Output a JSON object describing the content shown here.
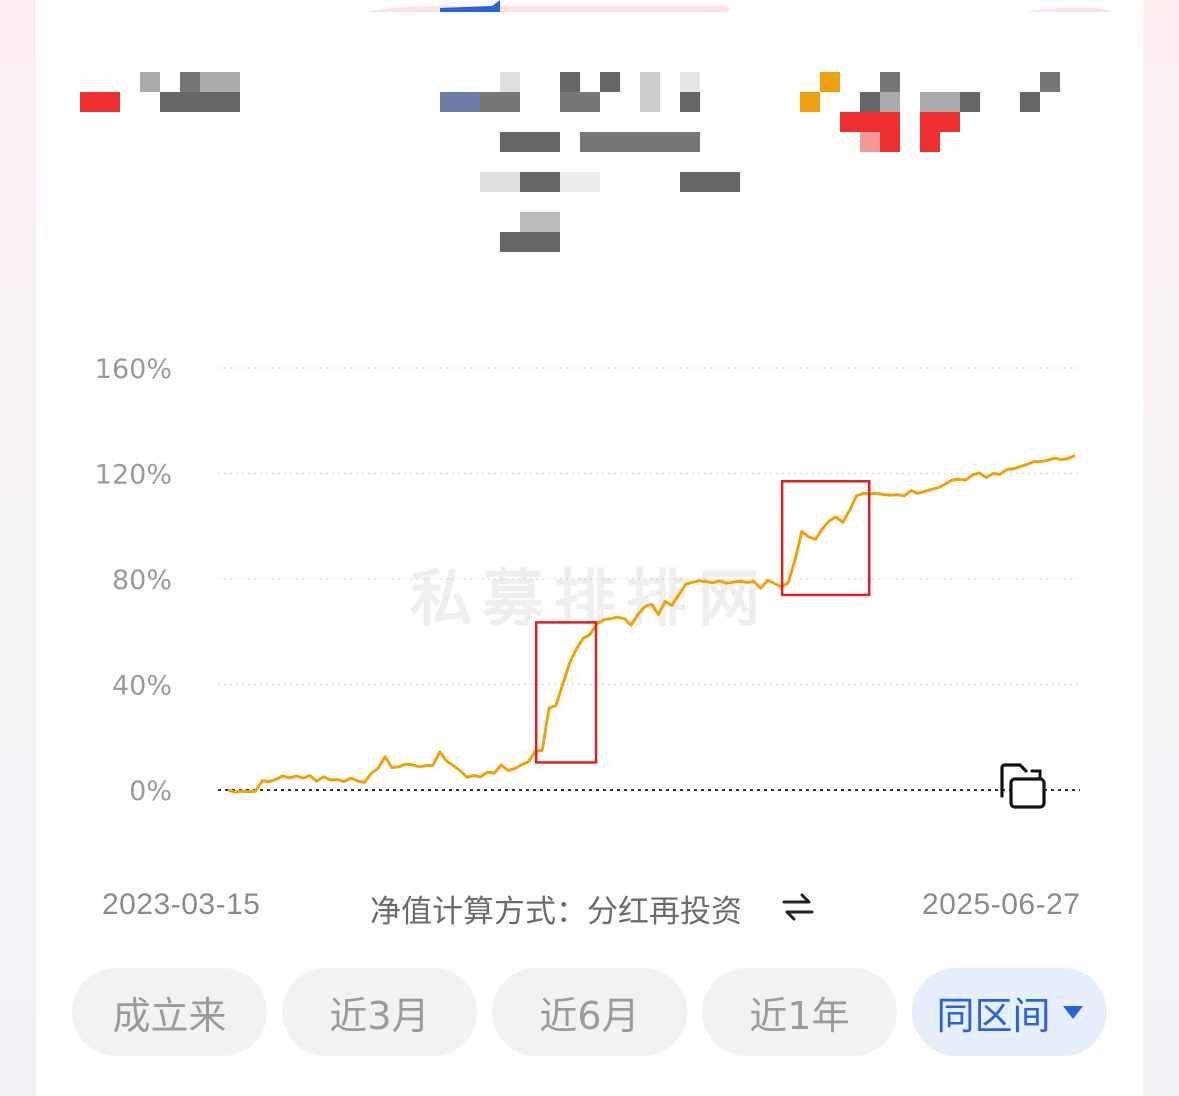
{
  "chart_data": {
    "type": "line",
    "xlabel": "",
    "ylabel": "",
    "x_start_label": "2023-03-15",
    "x_end_label": "2025-06-27",
    "y_ticks": [
      "160%",
      "120%",
      "80%",
      "40%",
      "0%"
    ],
    "ylim": [
      0,
      160
    ],
    "grid": true,
    "line_color": "#f0a20a",
    "highlight_color": "#e02020",
    "series": [
      {
        "values": [
          0,
          -0.8,
          -0.4,
          -0.6,
          -0.5,
          3.5,
          3.2,
          4,
          5.3,
          4.6,
          5.3,
          4.5,
          5.5,
          3.3,
          5,
          3.8,
          4,
          3.2,
          4.5,
          3.4,
          2.9,
          6.4,
          8.3,
          12.6,
          8.5,
          8.8,
          9.8,
          9.6,
          8.8,
          9.3,
          9.3,
          14.5,
          11,
          9.2,
          7.3,
          4.8,
          5.5,
          5,
          6.8,
          6.4,
          9.5,
          7.4,
          8.2,
          9.6,
          10.7,
          14.8,
          15,
          31,
          32,
          40,
          48,
          53.5,
          57.5,
          59,
          63,
          64.5,
          65,
          65.5,
          65,
          62.5,
          66.5,
          69.5,
          70.5,
          66.5,
          71.5,
          70,
          74,
          78,
          78.8,
          79.3,
          79,
          78.6,
          79.3,
          78.4,
          78.8,
          79.2,
          78.7,
          79,
          76.5,
          79.5,
          78.3,
          77,
          78.5,
          87,
          98,
          96,
          95,
          99,
          102,
          103.5,
          101.5,
          106,
          111.5,
          112.5,
          112.3,
          112.5,
          112,
          111.8,
          112,
          111.5,
          113.5,
          112.5,
          113.2,
          114,
          114.6,
          116,
          117.5,
          117.8,
          117.5,
          119.5,
          120.2,
          118.5,
          120,
          119.7,
          121.5,
          121.8,
          122.6,
          123.5,
          124.5,
          124.5,
          125,
          125.8,
          125.3,
          125.7,
          126.8
        ]
      }
    ],
    "highlights": [
      {
        "from_index": 46,
        "to_index": 53
      },
      {
        "from_index": 82,
        "to_index": 93
      }
    ]
  },
  "nav_method": {
    "label": "净值计算方式：分红再投资"
  },
  "icons": {
    "switch": "swap-arrows-icon",
    "copy": "copy-icon"
  },
  "range_tabs": [
    {
      "label": "成立来",
      "active": false
    },
    {
      "label": "近3月",
      "active": false
    },
    {
      "label": "近6月",
      "active": false
    },
    {
      "label": "近1年",
      "active": false
    },
    {
      "label": "同区间",
      "active": true
    }
  ]
}
